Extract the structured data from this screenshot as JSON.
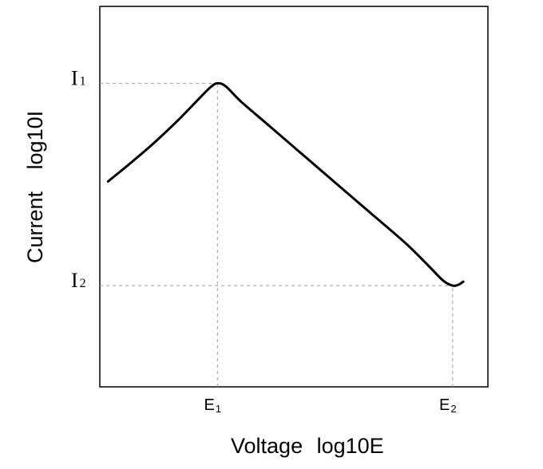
{
  "chart_data": {
    "type": "line",
    "xlabel": "Voltage",
    "xlabel_unit": "log10E",
    "ylabel": "Current",
    "ylabel_unit": "log10I",
    "x_ticks": [
      {
        "label": "E",
        "sub": "1",
        "value": 1.0
      },
      {
        "label": "E",
        "sub": "2",
        "value": 3.0
      }
    ],
    "y_ticks": [
      {
        "label": "I",
        "sub": "1",
        "value": 3.0
      },
      {
        "label": "I",
        "sub": "2",
        "value": 1.0
      }
    ],
    "xlim": [
      0.0,
      3.3
    ],
    "ylim": [
      0.0,
      3.76
    ],
    "grid": false,
    "reference_lines": "dashed guides from E1/I1 and E2/I2 to the curve",
    "series": [
      {
        "values_xy": [
          [
            0.07,
            2.03
          ],
          [
            0.27,
            2.22
          ],
          [
            0.47,
            2.42
          ],
          [
            0.67,
            2.64
          ],
          [
            0.82,
            2.82
          ],
          [
            0.94,
            2.96
          ],
          [
            1.0,
            3.0
          ],
          [
            1.07,
            2.97
          ],
          [
            1.2,
            2.82
          ],
          [
            1.4,
            2.62
          ],
          [
            1.7,
            2.32
          ],
          [
            2.0,
            2.02
          ],
          [
            2.3,
            1.72
          ],
          [
            2.6,
            1.42
          ],
          [
            2.8,
            1.19
          ],
          [
            2.92,
            1.05
          ],
          [
            3.0,
            1.0
          ],
          [
            3.05,
            1.01
          ],
          [
            3.09,
            1.04
          ]
        ]
      }
    ]
  }
}
